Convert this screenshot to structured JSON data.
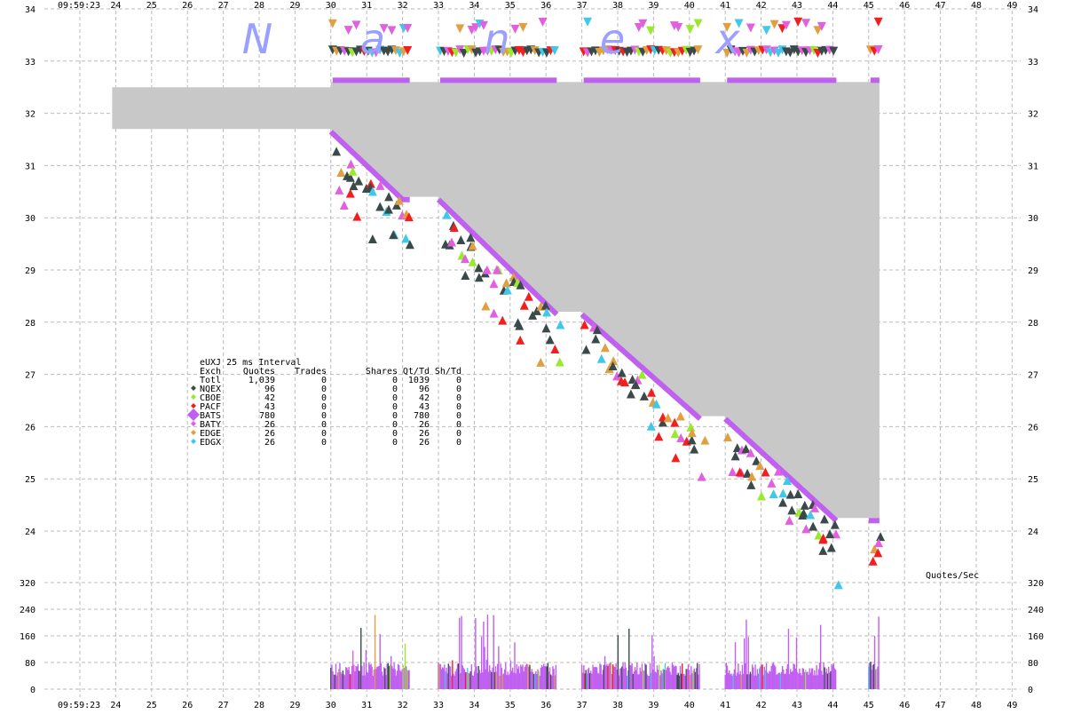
{
  "chart_data": {
    "type": "scatter",
    "time_label": "09:59:23",
    "x_ticks": [
      "24",
      "25",
      "26",
      "27",
      "28",
      "29",
      "30",
      "31",
      "32",
      "33",
      "34",
      "35",
      "36",
      "37",
      "38",
      "39",
      "40",
      "41",
      "42",
      "43",
      "44",
      "45",
      "46",
      "47",
      "48",
      "49"
    ],
    "y_ticks": [
      "24",
      "25",
      "26",
      "27",
      "28",
      "29",
      "30",
      "31",
      "32",
      "33",
      "34"
    ],
    "ylim": [
      23.5,
      34
    ],
    "volume_label": "Quotes/Sec",
    "volume_ticks": [
      "0",
      "80",
      "160",
      "240",
      "320"
    ],
    "volume_ylim": [
      0,
      360
    ],
    "watermark": [
      "N",
      "a",
      "n",
      "e",
      "x"
    ],
    "grid": true,
    "colors": {
      "NQEX": "#3a4a4a",
      "CBOE": "#9be830",
      "PACF": "#f02020",
      "BATS": "#c060f0",
      "BATY": "#e060e0",
      "EDGE": "#e0a040",
      "EDGX": "#40c8e8",
      "nbbo_fill": "#c8c8c8"
    },
    "nbbo_band": {
      "start_x": 23.9,
      "bid_before": 31.7,
      "ask_before": 32.5,
      "ask_after": 32.6,
      "bid_path": [
        [
          30.0,
          31.7
        ],
        [
          32.0,
          30.4
        ],
        [
          33.0,
          30.4
        ],
        [
          36.3,
          28.2
        ],
        [
          37.0,
          28.2
        ],
        [
          40.3,
          26.2
        ],
        [
          41.0,
          26.2
        ],
        [
          44.1,
          24.25
        ],
        [
          45.2,
          24.25
        ]
      ],
      "end_x": 45.3
    },
    "active_segments": [
      [
        30.0,
        32.2
      ],
      [
        33.0,
        36.3
      ],
      [
        37.0,
        40.3
      ],
      [
        41.0,
        44.1
      ],
      [
        45.0,
        45.3
      ]
    ],
    "summary_table": {
      "title": "eUXJ 25 ms Interval",
      "headers": [
        "Exch",
        "Quotes",
        "Trades",
        "Shares",
        "Qt/Td",
        "Sh/Td"
      ],
      "rows": [
        {
          "exch": "Totl",
          "quotes": "1,039",
          "trades": "0",
          "shares": "0",
          "qt_td": "1039",
          "sh_td": "0"
        },
        {
          "exch": "NQEX",
          "quotes": "96",
          "trades": "0",
          "shares": "0",
          "qt_td": "96",
          "sh_td": "0"
        },
        {
          "exch": "CBOE",
          "quotes": "42",
          "trades": "0",
          "shares": "0",
          "qt_td": "42",
          "sh_td": "0"
        },
        {
          "exch": "PACF",
          "quotes": "43",
          "trades": "0",
          "shares": "0",
          "qt_td": "43",
          "sh_td": "0"
        },
        {
          "exch": "BATS",
          "quotes": "780",
          "trades": "0",
          "shares": "0",
          "qt_td": "780",
          "sh_td": "0"
        },
        {
          "exch": "BATY",
          "quotes": "26",
          "trades": "0",
          "shares": "0",
          "qt_td": "26",
          "sh_td": "0"
        },
        {
          "exch": "EDGE",
          "quotes": "26",
          "trades": "0",
          "shares": "0",
          "qt_td": "26",
          "sh_td": "0"
        },
        {
          "exch": "EDGX",
          "quotes": "26",
          "trades": "0",
          "shares": "0",
          "qt_td": "26",
          "sh_td": "0"
        }
      ]
    }
  }
}
